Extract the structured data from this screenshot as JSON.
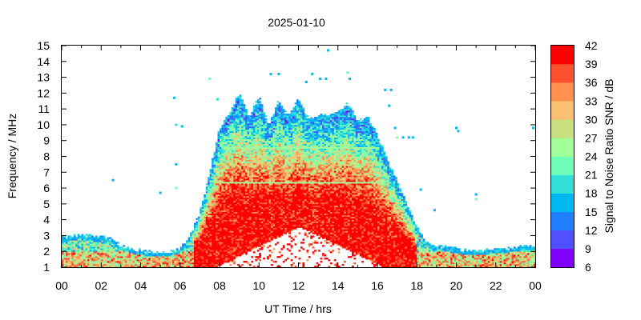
{
  "chart_data": {
    "type": "heatmap",
    "title": "2025-01-10",
    "xlabel": "UT Time / hrs",
    "ylabel": "Frequency / MHz",
    "xlim": [
      0,
      24
    ],
    "ylim": [
      1,
      15
    ],
    "x_ticks": [
      "00",
      "02",
      "04",
      "06",
      "08",
      "10",
      "12",
      "14",
      "16",
      "18",
      "20",
      "22",
      "00"
    ],
    "y_ticks": [
      "1",
      "2",
      "3",
      "4",
      "5",
      "6",
      "7",
      "8",
      "9",
      "10",
      "11",
      "12",
      "13",
      "14",
      "15"
    ],
    "colorbar": {
      "label": "Signal to Noise Ratio SNR / dB",
      "range": [
        6,
        42
      ],
      "ticks": [
        "6",
        "9",
        "12",
        "15",
        "18",
        "21",
        "24",
        "27",
        "30",
        "33",
        "36",
        "39",
        "42"
      ],
      "colors": [
        "#8000ff",
        "#5050ff",
        "#2080ff",
        "#00b8f0",
        "#30e0d8",
        "#70ffb8",
        "#a0ff98",
        "#c8e080",
        "#f8c070",
        "#ff9050",
        "#ff5030",
        "#ff0000"
      ]
    },
    "max_freq_envelope": {
      "time_hours": [
        0,
        0.5,
        1,
        1.5,
        2,
        2.5,
        3,
        3.5,
        4,
        4.5,
        5,
        5.5,
        6,
        6.5,
        7,
        7.5,
        8,
        8.5,
        9,
        9.5,
        10,
        10.5,
        11,
        11.5,
        12,
        12.5,
        13,
        13.5,
        14,
        14.5,
        15,
        15.5,
        16,
        16.5,
        17,
        17.5,
        18,
        18.5,
        19,
        19.5,
        20,
        20.5,
        21,
        21.5,
        22,
        22.5,
        23,
        23.5,
        24
      ],
      "max_freq_mhz": [
        2.9,
        3.0,
        3.1,
        3.0,
        3.0,
        2.8,
        2.4,
        2.2,
        2.1,
        2.0,
        2.0,
        2.0,
        2.2,
        3.0,
        4.5,
        7.0,
        9.8,
        10.8,
        12.0,
        10.5,
        11.8,
        10.0,
        11.6,
        10.5,
        11.7,
        10.4,
        10.6,
        10.7,
        10.8,
        11.4,
        10.2,
        10.6,
        9.4,
        7.8,
        6.5,
        5.0,
        3.5,
        2.6,
        2.4,
        2.3,
        2.2,
        2.1,
        2.1,
        2.1,
        2.2,
        2.2,
        2.3,
        2.4,
        2.4
      ]
    },
    "sporadic_points": [
      {
        "time_hours": 2.6,
        "freq_mhz": 6.5,
        "snr_db": 16
      },
      {
        "time_hours": 5.7,
        "freq_mhz": 11.7,
        "snr_db": 16
      },
      {
        "time_hours": 5.8,
        "freq_mhz": 10.0,
        "snr_db": 20
      },
      {
        "time_hours": 6.1,
        "freq_mhz": 9.9,
        "snr_db": 16
      },
      {
        "time_hours": 5.0,
        "freq_mhz": 5.7,
        "snr_db": 16
      },
      {
        "time_hours": 5.8,
        "freq_mhz": 6.0,
        "snr_db": 22
      },
      {
        "time_hours": 5.8,
        "freq_mhz": 7.5,
        "snr_db": 16
      },
      {
        "time_hours": 7.5,
        "freq_mhz": 12.9,
        "snr_db": 22
      },
      {
        "time_hours": 7.9,
        "freq_mhz": 11.6,
        "snr_db": 20
      },
      {
        "time_hours": 10.6,
        "freq_mhz": 13.2,
        "snr_db": 16
      },
      {
        "time_hours": 11.0,
        "freq_mhz": 13.2,
        "snr_db": 16
      },
      {
        "time_hours": 12.4,
        "freq_mhz": 12.7,
        "snr_db": 16
      },
      {
        "time_hours": 12.7,
        "freq_mhz": 13.2,
        "snr_db": 16
      },
      {
        "time_hours": 13.1,
        "freq_mhz": 12.9,
        "snr_db": 16
      },
      {
        "time_hours": 13.5,
        "freq_mhz": 14.7,
        "snr_db": 16
      },
      {
        "time_hours": 13.4,
        "freq_mhz": 12.9,
        "snr_db": 16
      },
      {
        "time_hours": 14.5,
        "freq_mhz": 13.3,
        "snr_db": 22
      },
      {
        "time_hours": 14.6,
        "freq_mhz": 12.9,
        "snr_db": 16
      },
      {
        "time_hours": 16.4,
        "freq_mhz": 12.2,
        "snr_db": 16
      },
      {
        "time_hours": 16.7,
        "freq_mhz": 12.2,
        "snr_db": 16
      },
      {
        "time_hours": 16.6,
        "freq_mhz": 11.2,
        "snr_db": 16
      },
      {
        "time_hours": 16.9,
        "freq_mhz": 9.8,
        "snr_db": 16
      },
      {
        "time_hours": 17.0,
        "freq_mhz": 9.2,
        "snr_db": 26
      },
      {
        "time_hours": 17.3,
        "freq_mhz": 9.2,
        "snr_db": 16
      },
      {
        "time_hours": 17.6,
        "freq_mhz": 9.2,
        "snr_db": 16
      },
      {
        "time_hours": 17.8,
        "freq_mhz": 9.2,
        "snr_db": 16
      },
      {
        "time_hours": 18.2,
        "freq_mhz": 5.9,
        "snr_db": 16
      },
      {
        "time_hours": 18.9,
        "freq_mhz": 4.6,
        "snr_db": 16
      },
      {
        "time_hours": 20.0,
        "freq_mhz": 9.8,
        "snr_db": 16
      },
      {
        "time_hours": 20.1,
        "freq_mhz": 9.6,
        "snr_db": 16
      },
      {
        "time_hours": 21.0,
        "freq_mhz": 5.3,
        "snr_db": 22
      },
      {
        "time_hours": 21.0,
        "freq_mhz": 5.6,
        "snr_db": 16
      },
      {
        "time_hours": 23.9,
        "freq_mhz": 9.8,
        "snr_db": 16
      }
    ]
  }
}
